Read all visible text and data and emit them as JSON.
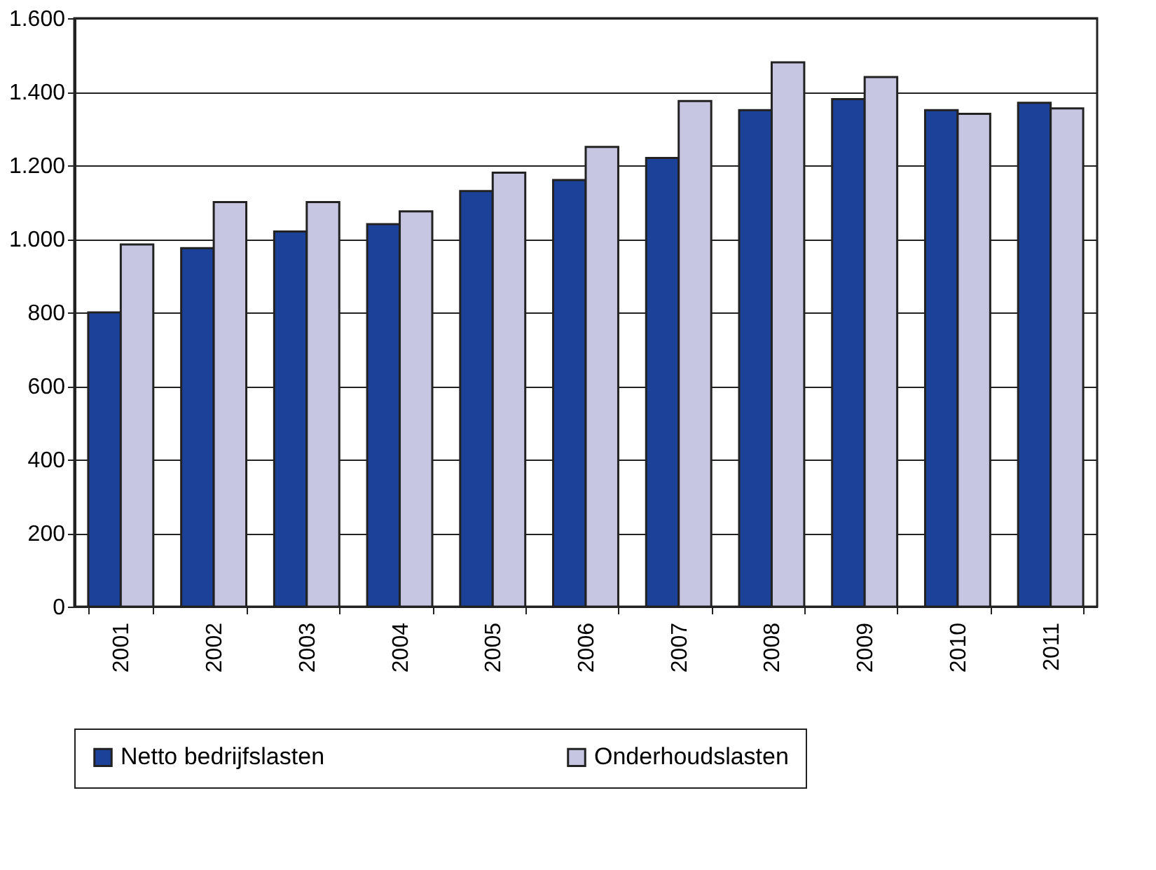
{
  "chart_data": {
    "type": "bar",
    "categories": [
      "2001",
      "2002",
      "2003",
      "2004",
      "2005",
      "2006",
      "2007",
      "2008",
      "2009",
      "2010",
      "2011"
    ],
    "series": [
      {
        "name": "Netto bedrijfslasten",
        "color": "#1c4199",
        "values": [
          800,
          975,
          1020,
          1040,
          1130,
          1160,
          1220,
          1350,
          1380,
          1350,
          1370
        ]
      },
      {
        "name": "Onderhoudslasten",
        "color": "#c6c6e3",
        "values": [
          985,
          1100,
          1100,
          1075,
          1180,
          1250,
          1375,
          1480,
          1440,
          1340,
          1355
        ]
      }
    ],
    "ylim": [
      0,
      1600
    ],
    "yticks": [
      0,
      200,
      400,
      600,
      800,
      {
        "value": 1000,
        "label": "1.000"
      },
      {
        "value": 1200,
        "label": "1.200"
      },
      {
        "value": 1400,
        "label": "1.400"
      },
      {
        "value": 1600,
        "label": "1.600"
      }
    ],
    "grid": "y",
    "legend": "bottom"
  }
}
